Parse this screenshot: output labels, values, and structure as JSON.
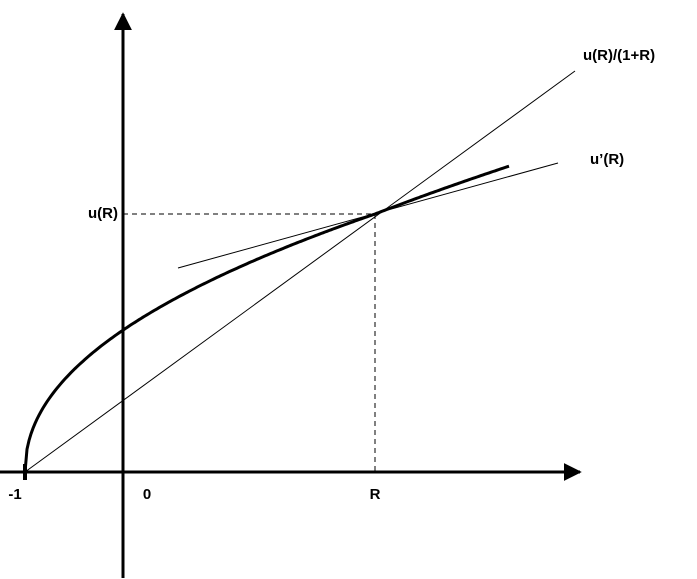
{
  "labels": {
    "line": "u(R)/(1+R)",
    "tangent": "u’(R)",
    "y_point": "u(R)",
    "x_minus_one": "-1",
    "x_zero": "0",
    "x_point": "R"
  }
}
